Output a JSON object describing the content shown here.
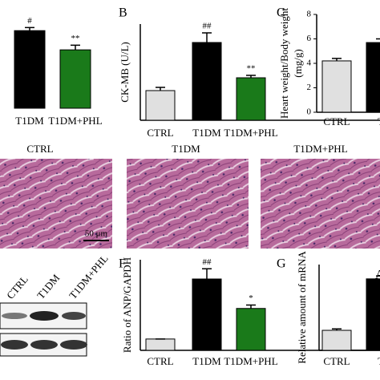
{
  "chart_data": [
    {
      "type": "bar",
      "categories": [
        "T1DM",
        "T1DM+PHL"
      ],
      "values": [
        10.1,
        7.6
      ],
      "errors": [
        0.4,
        0.6
      ],
      "colors": [
        "#000000",
        "#1a7a1a"
      ],
      "annotations": [
        "#",
        "**"
      ],
      "ylim": [
        0,
        12
      ]
    },
    {
      "type": "bar",
      "panel": "B",
      "ylabel": "CK-MB (U/L)",
      "categories": [
        "CTRL",
        "T1DM",
        "T1DM+PHL"
      ],
      "values": [
        3.7,
        9.7,
        5.3
      ],
      "errors": [
        0.4,
        1.2,
        0.3
      ],
      "colors": [
        "#e0e0e0",
        "#000000",
        "#1a7a1a"
      ],
      "annotations": [
        null,
        "##",
        "**"
      ],
      "ylim": [
        0,
        12
      ]
    },
    {
      "type": "bar",
      "panel": "C",
      "ylabel": "Heart weight/Body weight",
      "ylabel2": "(mg/g)",
      "categories": [
        "CTRL",
        "T"
      ],
      "values": [
        4.2,
        5.7
      ],
      "errors": [
        0.2,
        0.3
      ],
      "colors": [
        "#e0e0e0",
        "#000000"
      ],
      "annotations": [
        null,
        null
      ],
      "ylim": [
        0,
        8
      ],
      "yticks": [
        0,
        2,
        4,
        6,
        8
      ]
    },
    {
      "type": "bar",
      "panel": "F",
      "ylabel": "Ratio of ANP/GAPDH",
      "categories": [
        "CTRL",
        "T1DM",
        "T1DM+PHL"
      ],
      "values": [
        1.0,
        6.3,
        3.7
      ],
      "errors": [
        0,
        0.9,
        0.3
      ],
      "colors": [
        "#e0e0e0",
        "#000000",
        "#1a7a1a"
      ],
      "annotations": [
        null,
        "##",
        "*"
      ],
      "ylim": [
        0,
        8
      ]
    },
    {
      "type": "bar",
      "panel": "G",
      "title": "A",
      "ylabel": "Relative amount of mRNA",
      "categories": [
        "CTRL",
        "T"
      ],
      "values": [
        1.4,
        5.0
      ],
      "errors": [
        0.1,
        0.2
      ],
      "colors": [
        "#e0e0e0",
        "#000000"
      ],
      "annotations": [
        null,
        null
      ],
      "ylim": [
        0,
        6
      ]
    }
  ],
  "histology": {
    "labels": [
      "CTRL",
      "T1DM",
      "T1DM+PHL"
    ],
    "scale_bar": "50 μm"
  },
  "blot": {
    "lanes": [
      "CTRL",
      "T1DM",
      "T1DM+PHL"
    ]
  }
}
